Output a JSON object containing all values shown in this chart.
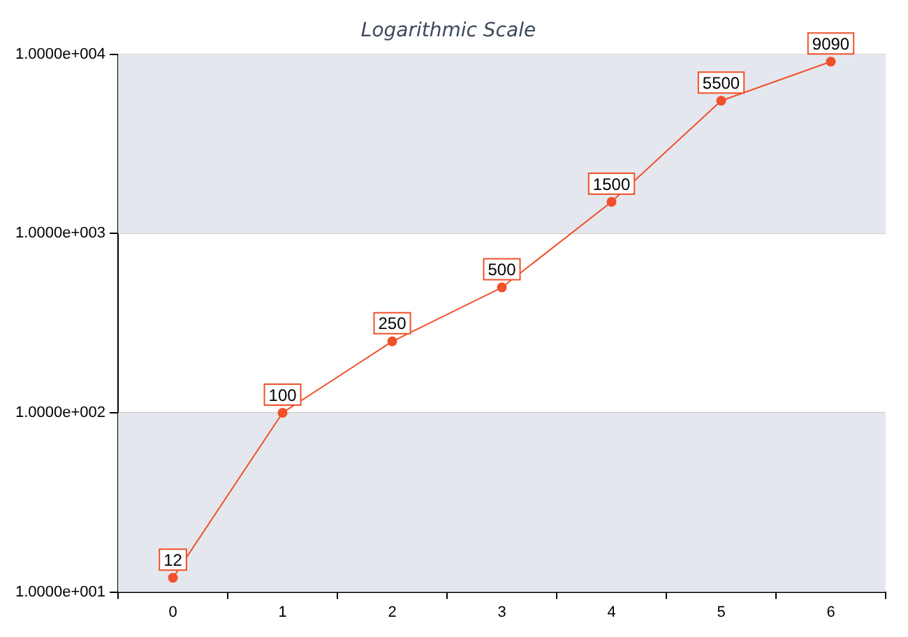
{
  "chart_data": {
    "type": "line",
    "title": "Logarithmic Scale",
    "categories": [
      "0",
      "1",
      "2",
      "3",
      "4",
      "5",
      "6"
    ],
    "series": [
      {
        "color": "#f0502a",
        "values": [
          12,
          100,
          250,
          500,
          1500,
          5500,
          9090
        ]
      }
    ],
    "log": "y",
    "ylim": [
      10,
      10000
    ],
    "yticks": [
      {
        "value": 10,
        "label": "1.0000e+001"
      },
      {
        "value": 100,
        "label": "1.0000e+002"
      },
      {
        "value": 1000,
        "label": "1.0000e+003"
      },
      {
        "value": 10000,
        "label": "1.0000e+004"
      }
    ],
    "bands": [
      {
        "axis": "y",
        "from": 10,
        "to": 100,
        "color": "#e4e7ee"
      },
      {
        "axis": "y",
        "from": 1000,
        "to": 10000,
        "color": "#e4e7ee"
      }
    ],
    "grid": "y",
    "marker": "circle",
    "line_style": "solid",
    "data_labels": true,
    "legend": false
  }
}
